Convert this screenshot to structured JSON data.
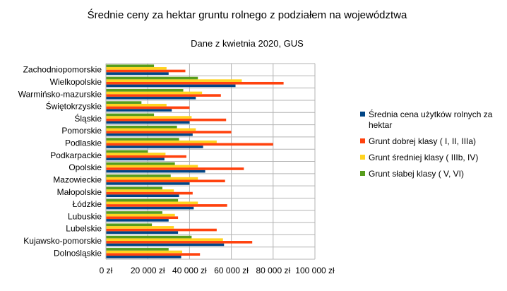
{
  "chart_data": {
    "type": "bar",
    "orientation": "horizontal",
    "title": "Średnie ceny za hektar gruntu rolnego z podziałem na województwa",
    "subtitle": "Dane z kwietnia 2020, GUS",
    "xlabel": "",
    "ylabel": "",
    "xlim": [
      0,
      100000
    ],
    "x_ticks": [
      "0 zł",
      "20 000 zł",
      "40 000 zł",
      "60 000 zł",
      "80 000 zł",
      "100 000 zł"
    ],
    "grid": true,
    "legend_position": "right",
    "categories": [
      "Zachodniopomorskie",
      "Wielkopolskie",
      "Warmińsko-mazurskie",
      "Świętokrzyskie",
      "Śląskie",
      "Pomorskie",
      "Podlaskie",
      "Podkarpackie",
      "Opolskie",
      "Mazowieckie",
      "Małopolskie",
      "Łódzkie",
      "Lubuskie",
      "Lubelskie",
      "Kujawsko-pomorskie",
      "Dolnośląskie"
    ],
    "series": [
      {
        "name": "Średnia cena użytków rolnych za hektar",
        "color": "#004586",
        "values": [
          30000,
          62000,
          43000,
          31500,
          40000,
          41500,
          46500,
          28000,
          47500,
          40000,
          35000,
          42000,
          30000,
          34500,
          56500,
          36000
        ]
      },
      {
        "name": "Grunt dobrej klasy ( I, II, IIIa)",
        "color": "#ff420e",
        "values": [
          38000,
          85000,
          55000,
          40000,
          57500,
          60000,
          80000,
          38500,
          66000,
          57000,
          41500,
          58000,
          34500,
          53000,
          70000,
          45000
        ]
      },
      {
        "name": "Grunt średniej klasy ( IIIb, IV)",
        "color": "#ffd320",
        "values": [
          29000,
          65000,
          46000,
          29000,
          41000,
          43000,
          53000,
          28500,
          44000,
          44000,
          32500,
          44000,
          33000,
          32500,
          56000,
          36500
        ]
      },
      {
        "name": "Grunt słabej klasy ( V, VI)",
        "color": "#579d1c",
        "values": [
          23000,
          44000,
          37000,
          17000,
          23000,
          34000,
          35000,
          20000,
          33000,
          31000,
          27000,
          34500,
          27000,
          22000,
          41000,
          30000
        ]
      }
    ]
  }
}
